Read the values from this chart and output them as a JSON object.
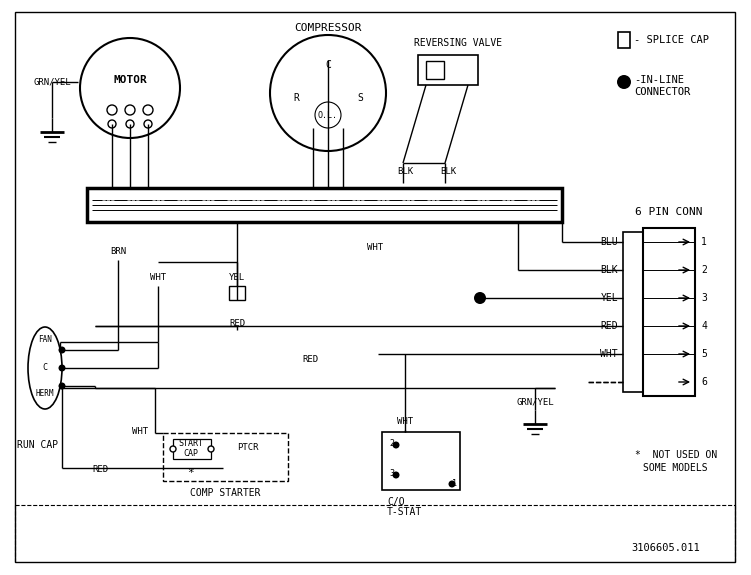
{
  "bg_color": "#ffffff",
  "line_color": "#000000",
  "legend_6pin": "6 PIN CONN",
  "pin_labels": [
    "BLU",
    "BLK",
    "YEL",
    "RED",
    "WHT",
    ""
  ],
  "pin_numbers": [
    "1",
    "2",
    "3",
    "4",
    "5",
    "6"
  ],
  "document_number": "3106605.011",
  "grn_yel_label": "GRN/YEL",
  "reversing_valve_label": "REVERSING VALVE",
  "compressor_label": "COMPRESSOR",
  "motor_label": "MOTOR",
  "fan_label": "FAN",
  "c_label": "C",
  "herm_label": "HERM"
}
